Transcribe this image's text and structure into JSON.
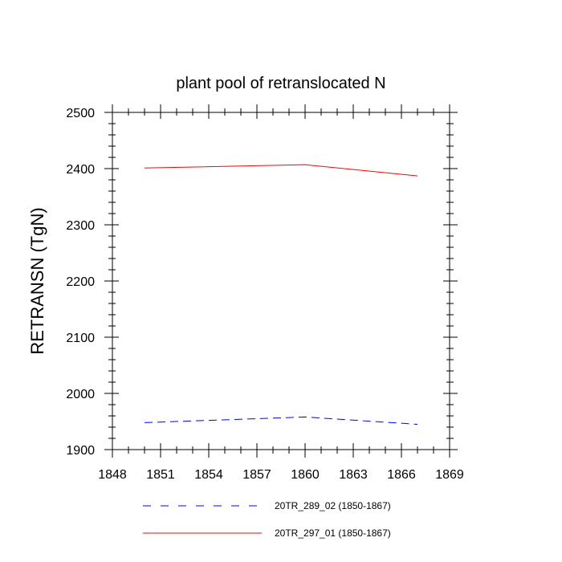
{
  "chart_data": {
    "type": "line",
    "title": "plant pool of retranslocated N",
    "xlabel": "",
    "ylabel": "RETRANSN  (TgN)",
    "xlim": [
      1848,
      1869
    ],
    "ylim": [
      1900,
      2500
    ],
    "xticks": [
      1848,
      1851,
      1854,
      1857,
      1860,
      1863,
      1866,
      1869
    ],
    "yticks": [
      1900,
      2000,
      2100,
      2200,
      2300,
      2400,
      2500
    ],
    "grid": false,
    "legend_position": "bottom",
    "series": [
      {
        "name": "20TR_289_02 (1850-1867)",
        "color": "#0000ff",
        "dash": "dashed",
        "x": [
          1850,
          1860,
          1867
        ],
        "y": [
          1948,
          1958,
          1945
        ]
      },
      {
        "name": "20TR_297_01 (1850-1867)",
        "color": "#ff0000",
        "dash": "solid",
        "x": [
          1850,
          1860,
          1867
        ],
        "y": [
          2401,
          2407,
          2387
        ]
      }
    ]
  }
}
